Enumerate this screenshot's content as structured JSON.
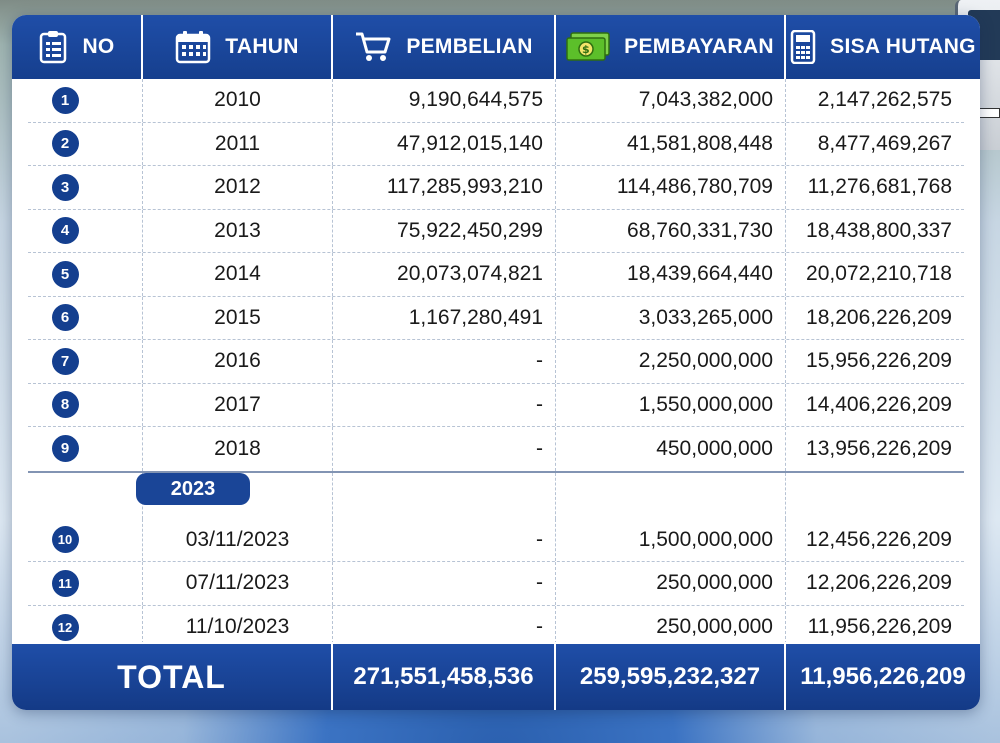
{
  "header": {
    "no": "NO",
    "tahun": "TAHUN",
    "pembelian": "PEMBELIAN",
    "pembayaran": "PEMBAYARAN",
    "sisa_hutang": "SISA HUTANG"
  },
  "icons": {
    "no": "clipboard-list-icon",
    "tahun": "calendar-icon",
    "pembelian": "shopping-cart-icon",
    "pembayaran": "money-bill-icon",
    "sisa_hutang": "calculator-icon"
  },
  "colors": {
    "header_blue": "#1f4ea8",
    "badge_blue": "#143f8f",
    "money_green": "#5cbf2a"
  },
  "rows": [
    {
      "no": "1",
      "tahun": "2010",
      "pembelian": "9,190,644,575",
      "pembayaran": "7,043,382,000",
      "sisa": "2,147,262,575"
    },
    {
      "no": "2",
      "tahun": "2011",
      "pembelian": "47,912,015,140",
      "pembayaran": "41,581,808,448",
      "sisa": "8,477,469,267"
    },
    {
      "no": "3",
      "tahun": "2012",
      "pembelian": "117,285,993,210",
      "pembayaran": "114,486,780,709",
      "sisa": "11,276,681,768"
    },
    {
      "no": "4",
      "tahun": "2013",
      "pembelian": "75,922,450,299",
      "pembayaran": "68,760,331,730",
      "sisa": "18,438,800,337"
    },
    {
      "no": "5",
      "tahun": "2014",
      "pembelian": "20,073,074,821",
      "pembayaran": "18,439,664,440",
      "sisa": "20,072,210,718"
    },
    {
      "no": "6",
      "tahun": "2015",
      "pembelian": "1,167,280,491",
      "pembayaran": "3,033,265,000",
      "sisa": "18,206,226,209"
    },
    {
      "no": "7",
      "tahun": "2016",
      "pembelian": "-",
      "pembayaran": "2,250,000,000",
      "sisa": "15,956,226,209"
    },
    {
      "no": "8",
      "tahun": "2017",
      "pembelian": "-",
      "pembayaran": "1,550,000,000",
      "sisa": "14,406,226,209"
    },
    {
      "no": "9",
      "tahun": "2018",
      "pembelian": "-",
      "pembayaran": "450,000,000",
      "sisa": "13,956,226,209"
    }
  ],
  "group_label": "2023",
  "rows_2023": [
    {
      "no": "10",
      "tahun": "03/11/2023",
      "pembelian": "-",
      "pembayaran": "1,500,000,000",
      "sisa": "12,456,226,209"
    },
    {
      "no": "11",
      "tahun": "07/11/2023",
      "pembelian": "-",
      "pembayaran": "250,000,000",
      "sisa": "12,206,226,209"
    },
    {
      "no": "12",
      "tahun": "11/10/2023",
      "pembelian": "-",
      "pembayaran": "250,000,000",
      "sisa": "11,956,226,209"
    }
  ],
  "total": {
    "label": "TOTAL",
    "pembelian": "271,551,458,536",
    "pembayaran": "259,595,232,327",
    "sisa": "11,956,226,209"
  }
}
